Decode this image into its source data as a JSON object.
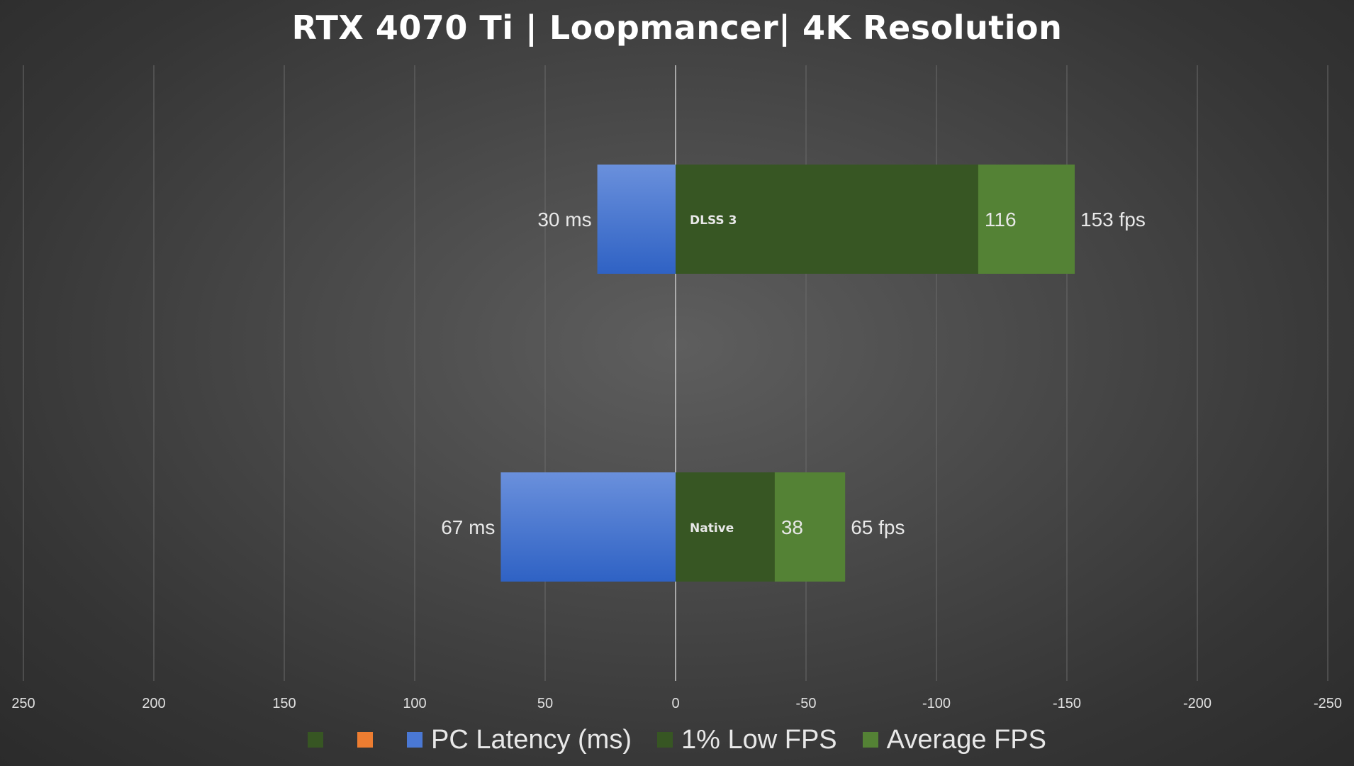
{
  "chart_data": {
    "type": "bar",
    "orientation": "horizontal",
    "title": "RTX 4070 Ti | Loopmancer| 4K Resolution",
    "categories": [
      "DLSS 3",
      "Native"
    ],
    "x_axis": {
      "ticks": [
        "250",
        "200",
        "150",
        "100",
        "50",
        "0",
        "-50",
        "-100",
        "-150",
        "-200",
        "-250"
      ],
      "range": [
        250,
        -250
      ],
      "reversed": true,
      "grid": true
    },
    "series": [
      {
        "name": "PC Latency (ms)",
        "color": "#4a78d4",
        "values": [
          30,
          67
        ],
        "labels": [
          "30 ms",
          "67 ms"
        ]
      },
      {
        "name": "1% Low FPS",
        "color": "#375623",
        "values": [
          116,
          38
        ],
        "labels": [
          "116",
          "38"
        ]
      },
      {
        "name": "Average FPS",
        "color": "#548235",
        "values": [
          153,
          65
        ],
        "labels": [
          "153 fps",
          "65 fps"
        ]
      }
    ],
    "legend": {
      "position": "bottom",
      "entries": [
        {
          "name": "",
          "color": "#375623"
        },
        {
          "name": "",
          "color": "#ed7d31"
        },
        {
          "name": "PC Latency (ms)",
          "color": "#4a78d4"
        },
        {
          "name": "1% Low FPS",
          "color": "#375623"
        },
        {
          "name": "Average FPS",
          "color": "#548235"
        }
      ]
    }
  }
}
